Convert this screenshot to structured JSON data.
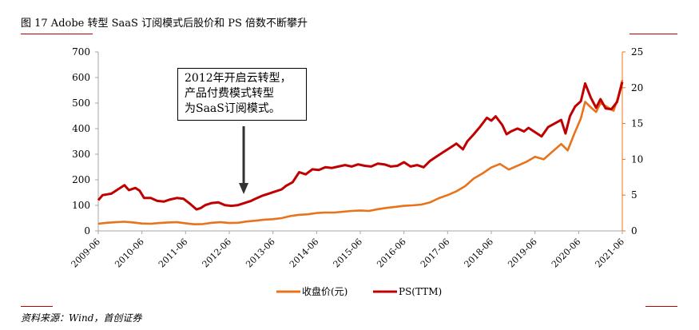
{
  "header": {
    "title": "图 17 Adobe 转型 SaaS 订阅模式后股价和 PS 倍数不断攀升"
  },
  "footer": {
    "source": "资料来源：Wind，首创证券"
  },
  "colors": {
    "rule": "#c00000",
    "price": "#e8731a",
    "ps": "#c00000",
    "axis": "#a6a6a6",
    "right_axis": "#e8731a"
  },
  "chart_data": {
    "type": "line",
    "title": "",
    "annotation": {
      "lines": [
        "2012年开启云转型，",
        "产品付费模式转型",
        "为SaaS订阅模式。"
      ],
      "target_x": "2012-10"
    },
    "x_tick_labels": [
      "2009-06",
      "2010-06",
      "2011-06",
      "2012-06",
      "2013-06",
      "2014-06",
      "2015-06",
      "2016-06",
      "2017-06",
      "2018-06",
      "2019-06",
      "2020-06",
      "2021-06"
    ],
    "left_axis": {
      "ylim": [
        0,
        700
      ],
      "ticks": [
        "0",
        "100",
        "200",
        "300",
        "400",
        "500",
        "600",
        "700"
      ]
    },
    "right_axis": {
      "ylim": [
        0,
        25
      ],
      "ticks": [
        "0",
        "5",
        "10",
        "15",
        "20",
        "25"
      ]
    },
    "x_start": 2009.5,
    "x_end": 2021.5,
    "legend": {
      "position": "bottom-center",
      "items": [
        "收盘价(元)",
        "PS(TTM)"
      ]
    },
    "series": [
      {
        "name": "收盘价(元)",
        "axis": "left",
        "points": [
          [
            2009.5,
            28
          ],
          [
            2009.7,
            32
          ],
          [
            2009.9,
            34
          ],
          [
            2010.1,
            36
          ],
          [
            2010.3,
            33
          ],
          [
            2010.5,
            29
          ],
          [
            2010.7,
            28
          ],
          [
            2010.9,
            31
          ],
          [
            2011.1,
            33
          ],
          [
            2011.3,
            34
          ],
          [
            2011.5,
            30
          ],
          [
            2011.7,
            26
          ],
          [
            2011.9,
            27
          ],
          [
            2012.1,
            32
          ],
          [
            2012.3,
            34
          ],
          [
            2012.5,
            31
          ],
          [
            2012.7,
            32
          ],
          [
            2012.9,
            37
          ],
          [
            2013.1,
            40
          ],
          [
            2013.3,
            44
          ],
          [
            2013.5,
            46
          ],
          [
            2013.7,
            50
          ],
          [
            2013.9,
            58
          ],
          [
            2014.1,
            63
          ],
          [
            2014.3,
            65
          ],
          [
            2014.5,
            70
          ],
          [
            2014.7,
            72
          ],
          [
            2014.9,
            72
          ],
          [
            2015.1,
            75
          ],
          [
            2015.3,
            78
          ],
          [
            2015.5,
            80
          ],
          [
            2015.7,
            78
          ],
          [
            2015.9,
            85
          ],
          [
            2016.1,
            90
          ],
          [
            2016.3,
            94
          ],
          [
            2016.5,
            98
          ],
          [
            2016.7,
            100
          ],
          [
            2016.9,
            103
          ],
          [
            2017.1,
            112
          ],
          [
            2017.3,
            128
          ],
          [
            2017.5,
            140
          ],
          [
            2017.7,
            155
          ],
          [
            2017.9,
            175
          ],
          [
            2018.1,
            205
          ],
          [
            2018.3,
            225
          ],
          [
            2018.5,
            248
          ],
          [
            2018.7,
            262
          ],
          [
            2018.9,
            240
          ],
          [
            2019.1,
            255
          ],
          [
            2019.3,
            270
          ],
          [
            2019.5,
            290
          ],
          [
            2019.7,
            280
          ],
          [
            2019.9,
            310
          ],
          [
            2020.1,
            340
          ],
          [
            2020.25,
            315
          ],
          [
            2020.4,
            380
          ],
          [
            2020.55,
            440
          ],
          [
            2020.65,
            505
          ],
          [
            2020.8,
            480
          ],
          [
            2020.9,
            465
          ],
          [
            2021.0,
            500
          ],
          [
            2021.15,
            485
          ],
          [
            2021.3,
            470
          ],
          [
            2021.4,
            520
          ],
          [
            2021.5,
            590
          ]
        ]
      },
      {
        "name": "PS(TTM)",
        "axis": "right",
        "points": [
          [
            2009.5,
            4.3
          ],
          [
            2009.6,
            5.0
          ],
          [
            2009.8,
            5.2
          ],
          [
            2009.95,
            5.8
          ],
          [
            2010.1,
            6.4
          ],
          [
            2010.2,
            5.7
          ],
          [
            2010.35,
            6.0
          ],
          [
            2010.45,
            5.6
          ],
          [
            2010.55,
            4.6
          ],
          [
            2010.7,
            4.6
          ],
          [
            2010.85,
            4.2
          ],
          [
            2011.0,
            4.1
          ],
          [
            2011.15,
            4.4
          ],
          [
            2011.3,
            4.6
          ],
          [
            2011.45,
            4.5
          ],
          [
            2011.6,
            3.8
          ],
          [
            2011.75,
            3.0
          ],
          [
            2011.85,
            3.2
          ],
          [
            2011.95,
            3.6
          ],
          [
            2012.1,
            3.9
          ],
          [
            2012.25,
            4.0
          ],
          [
            2012.4,
            3.6
          ],
          [
            2012.55,
            3.5
          ],
          [
            2012.7,
            3.6
          ],
          [
            2012.85,
            3.9
          ],
          [
            2013.0,
            4.2
          ],
          [
            2013.1,
            4.5
          ],
          [
            2013.25,
            4.9
          ],
          [
            2013.4,
            5.2
          ],
          [
            2013.55,
            5.5
          ],
          [
            2013.7,
            5.8
          ],
          [
            2013.8,
            6.3
          ],
          [
            2013.95,
            6.8
          ],
          [
            2014.1,
            8.2
          ],
          [
            2014.25,
            7.9
          ],
          [
            2014.4,
            8.6
          ],
          [
            2014.55,
            8.5
          ],
          [
            2014.7,
            8.9
          ],
          [
            2014.85,
            8.8
          ],
          [
            2015.0,
            9.0
          ],
          [
            2015.15,
            9.2
          ],
          [
            2015.3,
            9.0
          ],
          [
            2015.45,
            9.3
          ],
          [
            2015.6,
            9.1
          ],
          [
            2015.75,
            9.0
          ],
          [
            2015.9,
            9.4
          ],
          [
            2016.05,
            9.3
          ],
          [
            2016.2,
            9.0
          ],
          [
            2016.35,
            9.1
          ],
          [
            2016.5,
            9.6
          ],
          [
            2016.65,
            9.0
          ],
          [
            2016.8,
            9.2
          ],
          [
            2016.95,
            8.9
          ],
          [
            2017.1,
            9.8
          ],
          [
            2017.25,
            10.4
          ],
          [
            2017.4,
            11.0
          ],
          [
            2017.55,
            11.6
          ],
          [
            2017.7,
            12.2
          ],
          [
            2017.85,
            11.4
          ],
          [
            2017.95,
            12.5
          ],
          [
            2018.1,
            13.5
          ],
          [
            2018.25,
            14.6
          ],
          [
            2018.4,
            15.8
          ],
          [
            2018.5,
            15.4
          ],
          [
            2018.6,
            16.0
          ],
          [
            2018.75,
            14.8
          ],
          [
            2018.85,
            13.5
          ],
          [
            2018.95,
            13.9
          ],
          [
            2019.1,
            14.3
          ],
          [
            2019.25,
            13.9
          ],
          [
            2019.35,
            14.4
          ],
          [
            2019.5,
            13.8
          ],
          [
            2019.65,
            13.2
          ],
          [
            2019.8,
            14.5
          ],
          [
            2019.95,
            15.0
          ],
          [
            2020.1,
            15.5
          ],
          [
            2020.2,
            13.6
          ],
          [
            2020.3,
            16.0
          ],
          [
            2020.42,
            17.4
          ],
          [
            2020.55,
            18.1
          ],
          [
            2020.65,
            20.6
          ],
          [
            2020.78,
            18.6
          ],
          [
            2020.9,
            17.2
          ],
          [
            2021.0,
            18.4
          ],
          [
            2021.12,
            17.1
          ],
          [
            2021.25,
            17.0
          ],
          [
            2021.38,
            18.0
          ],
          [
            2021.5,
            20.8
          ]
        ]
      }
    ]
  }
}
